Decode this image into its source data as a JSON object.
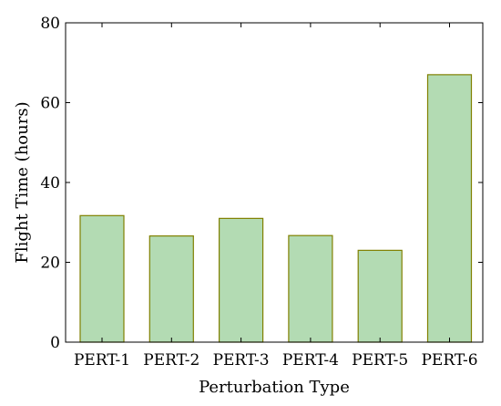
{
  "chart_data": {
    "type": "bar",
    "categories": [
      "PERT-1",
      "PERT-2",
      "PERT-3",
      "PERT-4",
      "PERT-5",
      "PERT-6"
    ],
    "values": [
      31.7,
      26.6,
      31.0,
      26.7,
      23.0,
      67.0
    ],
    "xlabel": "Perturbation Type",
    "ylabel": "Flight Time (hours)",
    "ylim": [
      0,
      80
    ],
    "yticks": [
      0,
      20,
      40,
      60,
      80
    ],
    "grid": false,
    "colors": {
      "bar_fill": "#b3dbb3",
      "bar_stroke": "#808000",
      "axis": "#000000"
    }
  }
}
